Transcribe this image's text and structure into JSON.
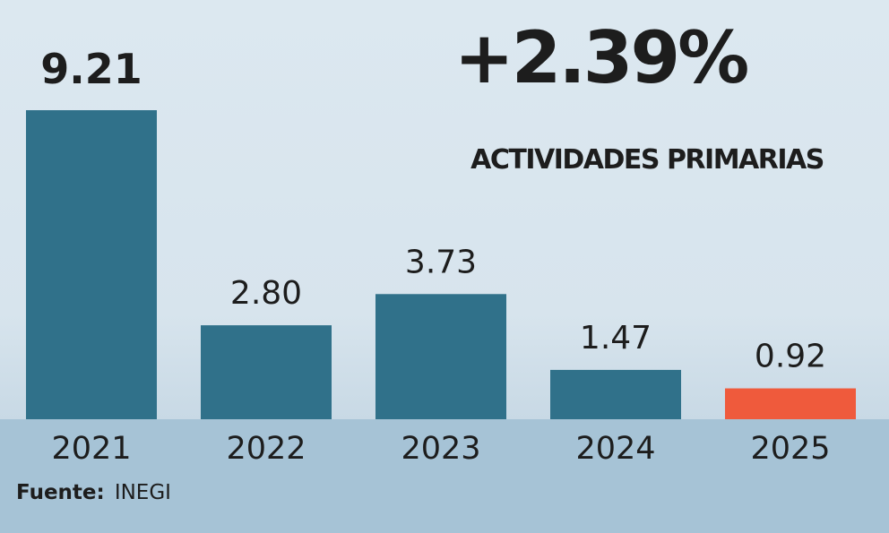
{
  "chart_data": {
    "type": "bar",
    "categories": [
      "2021",
      "2022",
      "2023",
      "2024",
      "2025"
    ],
    "values": [
      9.21,
      2.8,
      3.73,
      1.47,
      0.92
    ],
    "data_labels": [
      "9.21",
      "2.80",
      "3.73",
      "1.47",
      "0.92"
    ],
    "ylim": [
      0,
      9.21
    ],
    "grid": false,
    "legend": "none",
    "headline_value": "+2.39%",
    "headline_label": "ACTIVIDADES PRIMARIAS"
  },
  "source": {
    "key": "Fuente:",
    "value": "INEGI"
  },
  "colors": {
    "plot_background": "#dce8f0",
    "footer_background": "#a6c3d6",
    "bar": "#30718a",
    "highlight_bar": "#ef5a3c",
    "text": "#1d1d1d"
  }
}
